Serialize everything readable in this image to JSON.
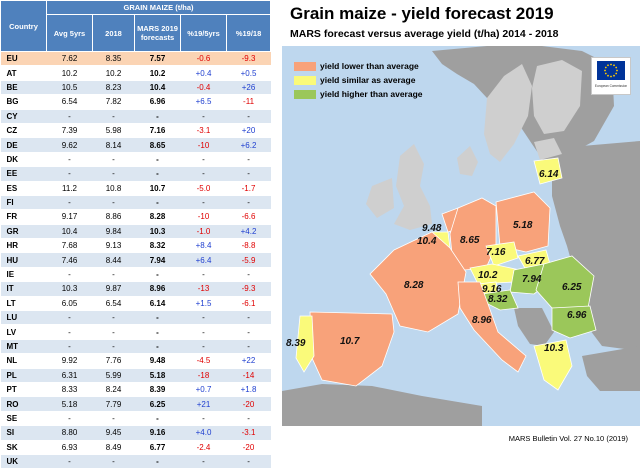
{
  "table": {
    "header_group": "GRAIN MAIZE (t/ha)",
    "columns": {
      "country": "Country",
      "avg": "Avg 5yrs",
      "y2018": "2018",
      "mars": "MARS 2019 forecasts",
      "pct5": "%19/5yrs",
      "pct18": "%19/18"
    },
    "rows": [
      {
        "c": "EU",
        "avg": "7.62",
        "y18": "8.35",
        "m": "7.57",
        "p5": "-0.6",
        "p18": "-9.3"
      },
      {
        "c": "AT",
        "avg": "10.2",
        "y18": "10.2",
        "m": "10.2",
        "p5": "+0.4",
        "p18": "+0.5"
      },
      {
        "c": "BE",
        "avg": "10.5",
        "y18": "8.23",
        "m": "10.4",
        "p5": "-0.4",
        "p18": "+26"
      },
      {
        "c": "BG",
        "avg": "6.54",
        "y18": "7.82",
        "m": "6.96",
        "p5": "+6.5",
        "p18": "-11"
      },
      {
        "c": "CY",
        "avg": "-",
        "y18": "-",
        "m": "-",
        "p5": "-",
        "p18": "-"
      },
      {
        "c": "CZ",
        "avg": "7.39",
        "y18": "5.98",
        "m": "7.16",
        "p5": "-3.1",
        "p18": "+20"
      },
      {
        "c": "DE",
        "avg": "9.62",
        "y18": "8.14",
        "m": "8.65",
        "p5": "-10",
        "p18": "+6.2"
      },
      {
        "c": "DK",
        "avg": "-",
        "y18": "-",
        "m": "-",
        "p5": "-",
        "p18": "-"
      },
      {
        "c": "EE",
        "avg": "-",
        "y18": "-",
        "m": "-",
        "p5": "-",
        "p18": "-"
      },
      {
        "c": "ES",
        "avg": "11.2",
        "y18": "10.8",
        "m": "10.7",
        "p5": "-5.0",
        "p18": "-1.7"
      },
      {
        "c": "FI",
        "avg": "-",
        "y18": "-",
        "m": "-",
        "p5": "-",
        "p18": "-"
      },
      {
        "c": "FR",
        "avg": "9.17",
        "y18": "8.86",
        "m": "8.28",
        "p5": "-10",
        "p18": "-6.6"
      },
      {
        "c": "GR",
        "avg": "10.4",
        "y18": "9.84",
        "m": "10.3",
        "p5": "-1.0",
        "p18": "+4.2"
      },
      {
        "c": "HR",
        "avg": "7.68",
        "y18": "9.13",
        "m": "8.32",
        "p5": "+8.4",
        "p18": "-8.8"
      },
      {
        "c": "HU",
        "avg": "7.46",
        "y18": "8.44",
        "m": "7.94",
        "p5": "+6.4",
        "p18": "-5.9"
      },
      {
        "c": "IE",
        "avg": "-",
        "y18": "-",
        "m": "-",
        "p5": "-",
        "p18": "-"
      },
      {
        "c": "IT",
        "avg": "10.3",
        "y18": "9.87",
        "m": "8.96",
        "p5": "-13",
        "p18": "-9.3"
      },
      {
        "c": "LT",
        "avg": "6.05",
        "y18": "6.54",
        "m": "6.14",
        "p5": "+1.5",
        "p18": "-6.1"
      },
      {
        "c": "LU",
        "avg": "-",
        "y18": "-",
        "m": "-",
        "p5": "-",
        "p18": "-"
      },
      {
        "c": "LV",
        "avg": "-",
        "y18": "-",
        "m": "-",
        "p5": "-",
        "p18": "-"
      },
      {
        "c": "MT",
        "avg": "-",
        "y18": "-",
        "m": "-",
        "p5": "-",
        "p18": "-"
      },
      {
        "c": "NL",
        "avg": "9.92",
        "y18": "7.76",
        "m": "9.48",
        "p5": "-4.5",
        "p18": "+22"
      },
      {
        "c": "PL",
        "avg": "6.31",
        "y18": "5.99",
        "m": "5.18",
        "p5": "-18",
        "p18": "-14"
      },
      {
        "c": "PT",
        "avg": "8.33",
        "y18": "8.24",
        "m": "8.39",
        "p5": "+0.7",
        "p18": "+1.8"
      },
      {
        "c": "RO",
        "avg": "5.18",
        "y18": "7.79",
        "m": "6.25",
        "p5": "+21",
        "p18": "-20"
      },
      {
        "c": "SE",
        "avg": "-",
        "y18": "-",
        "m": "-",
        "p5": "-",
        "p18": "-"
      },
      {
        "c": "SI",
        "avg": "8.80",
        "y18": "9.45",
        "m": "9.16",
        "p5": "+4.0",
        "p18": "-3.1"
      },
      {
        "c": "SK",
        "avg": "6.93",
        "y18": "8.49",
        "m": "6.77",
        "p5": "-2.4",
        "p18": "-20"
      },
      {
        "c": "UK",
        "avg": "-",
        "y18": "-",
        "m": "-",
        "p5": "-",
        "p18": "-"
      }
    ]
  },
  "map": {
    "title": "Grain maize - yield forecast 2019",
    "subtitle": "MARS forecast versus average yield (t/ha) 2014 - 2018",
    "legend": [
      {
        "label": "yield lower than average",
        "color": "#f8a27a"
      },
      {
        "label": "yield similar as average",
        "color": "#fafa7a"
      },
      {
        "label": "yield higher than average",
        "color": "#9bc75a"
      }
    ],
    "colors": {
      "sea": "#bed7ee",
      "nodata": "#cfcfcf",
      "outside": "#9f9f9f",
      "neg": "#e00000",
      "pos": "#1f3fd0"
    },
    "country_values": [
      {
        "code": "LT",
        "value": "6.14",
        "cat": "similar"
      },
      {
        "code": "NL",
        "value": "9.48",
        "cat": "lower"
      },
      {
        "code": "BE",
        "value": "10.4",
        "cat": "similar"
      },
      {
        "code": "DE",
        "value": "8.65",
        "cat": "lower"
      },
      {
        "code": "PL",
        "value": "5.18",
        "cat": "lower"
      },
      {
        "code": "CZ",
        "value": "7.16",
        "cat": "similar"
      },
      {
        "code": "SK",
        "value": "6.77",
        "cat": "similar"
      },
      {
        "code": "AT",
        "value": "10.2",
        "cat": "similar"
      },
      {
        "code": "HU",
        "value": "7.94",
        "cat": "higher"
      },
      {
        "code": "RO",
        "value": "6.25",
        "cat": "higher"
      },
      {
        "code": "SI",
        "value": "9.16",
        "cat": "similar"
      },
      {
        "code": "HR",
        "value": "8.32",
        "cat": "higher"
      },
      {
        "code": "FR",
        "value": "8.28",
        "cat": "lower"
      },
      {
        "code": "IT",
        "value": "8.96",
        "cat": "lower"
      },
      {
        "code": "BG",
        "value": "6.96",
        "cat": "higher"
      },
      {
        "code": "ES",
        "value": "10.7",
        "cat": "lower"
      },
      {
        "code": "PT",
        "value": "8.39",
        "cat": "similar"
      },
      {
        "code": "GR",
        "value": "10.3",
        "cat": "similar"
      }
    ],
    "footer": "MARS Bulletin Vol. 27 No.10 (2019)",
    "eu_logo_text": "European Commission"
  }
}
